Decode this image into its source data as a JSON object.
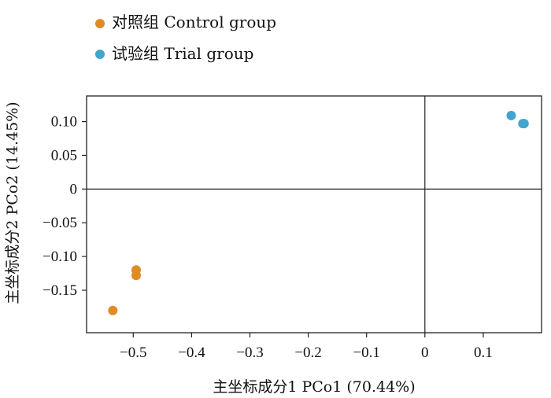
{
  "chart_data": {
    "type": "scatter",
    "xlabel": "主坐标成分1 PCo1 (70.44%)",
    "ylabel": "主坐标成分2 PCo2 (14.45%)",
    "xlim": [
      -0.58,
      0.2
    ],
    "ylim": [
      -0.213,
      0.138
    ],
    "x_ticks": [
      -0.5,
      -0.4,
      -0.3,
      -0.2,
      -0.1,
      0,
      0.1
    ],
    "x_tick_labels": [
      "−0.5",
      "−0.4",
      "−0.3",
      "−0.2",
      "−0.1",
      "0",
      "0.1"
    ],
    "y_ticks": [
      0.1,
      0.05,
      0,
      -0.05,
      -0.1,
      -0.15
    ],
    "y_tick_labels": [
      "0.10",
      "0.05",
      "0",
      "−0.05",
      "−0.10",
      "−0.15"
    ],
    "grid": false,
    "zero_lines": true,
    "legend_position": "top-left",
    "series": [
      {
        "name": "对照组 Control group",
        "color": "#E08B24",
        "points": [
          {
            "x": -0.495,
            "y": -0.12
          },
          {
            "x": -0.495,
            "y": -0.128
          },
          {
            "x": -0.535,
            "y": -0.18
          }
        ]
      },
      {
        "name": "试验组 Trial group",
        "color": "#42A5CF",
        "points": [
          {
            "x": 0.148,
            "y": 0.109
          },
          {
            "x": 0.168,
            "y": 0.097
          },
          {
            "x": 0.17,
            "y": 0.097
          }
        ]
      }
    ]
  }
}
